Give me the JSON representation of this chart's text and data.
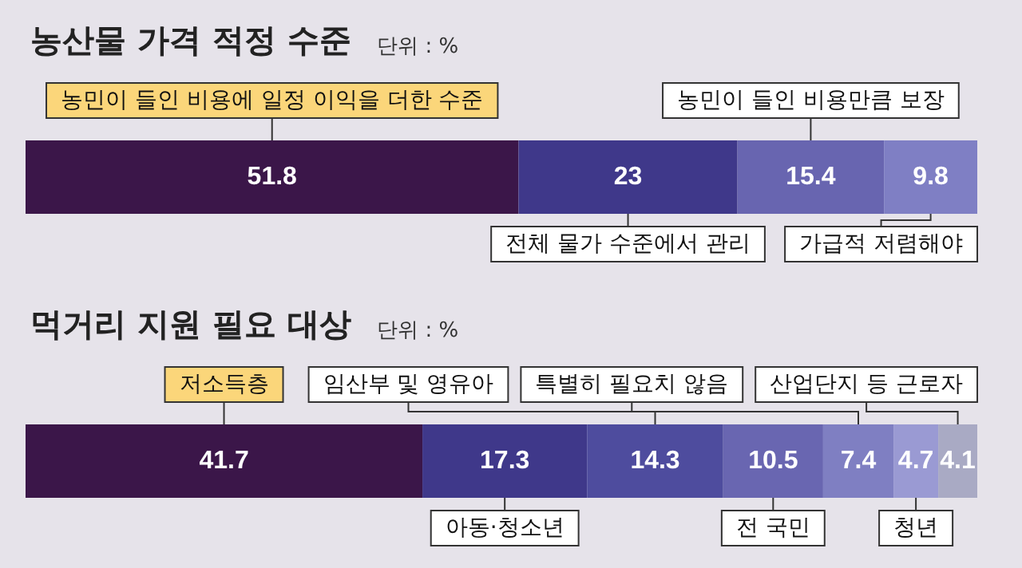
{
  "chart_data": [
    {
      "type": "bar",
      "title": "농산물 가격 적정 수준",
      "subtitle": "단위 : %",
      "orientation": "horizontal",
      "stacked": true,
      "data_labels": true,
      "legend": false,
      "tick_labels": false,
      "categories": [
        null
      ],
      "series": [
        {
          "name": "농민이 들인 비용에 일정 이익을 더한 수준",
          "color": "#3b1649",
          "values": [
            51.8
          ]
        },
        {
          "name": "전체 물가 수준에서 관리",
          "color": "#3f388a",
          "values": [
            23
          ]
        },
        {
          "name": "농민이 들인 비용만큼 보장",
          "color": "#6865b0",
          "values": [
            15.4
          ]
        },
        {
          "name": "가급적 저렴해야",
          "color": "#7f7fc4",
          "values": [
            9.8
          ]
        }
      ]
    },
    {
      "type": "bar",
      "title": "먹거리 지원 필요 대상",
      "subtitle": "단위 : %",
      "orientation": "horizontal",
      "stacked": true,
      "data_labels": true,
      "legend": false,
      "tick_labels": false,
      "categories": [
        null
      ],
      "series": [
        {
          "name": "저소득층",
          "color": "#3b1649",
          "values": [
            41.7
          ]
        },
        {
          "name": "아동·청소년",
          "color": "#3f388a",
          "values": [
            17.3
          ]
        },
        {
          "name": "임산부 및 영유아",
          "color": "#4e4c9e",
          "values": [
            14.3
          ]
        },
        {
          "name": "전 국민",
          "color": "#6966b1",
          "values": [
            10.5
          ]
        },
        {
          "name": "특별히 필요치 않음",
          "color": "#7f7fc2",
          "values": [
            7.4
          ]
        },
        {
          "name": "청년",
          "color": "#9a9ad3",
          "values": [
            4.7
          ]
        },
        {
          "name": "산업단지 등 근로자",
          "color": "#a9aac4",
          "values": [
            4.1
          ]
        }
      ]
    }
  ]
}
